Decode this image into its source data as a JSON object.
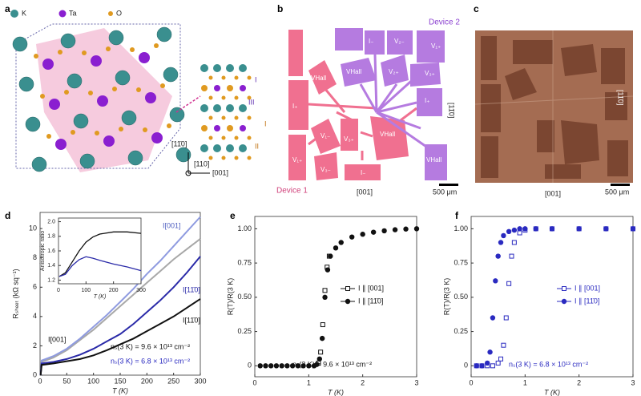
{
  "figure": {
    "a": {
      "letter": "a",
      "legend": [
        "K",
        "Ta",
        "O"
      ],
      "directions": [
        "[11̄0]",
        "[110]",
        "[001]"
      ],
      "sites": [
        "I",
        "III",
        "I",
        "II"
      ]
    },
    "b": {
      "letter": "b",
      "device2": "Device 2",
      "device1": "Device 1",
      "labels": [
        "I₋",
        "V₂₋",
        "V₁₊",
        "VHall",
        "V₂₊",
        "V₃₊",
        "I₊",
        "VHall",
        "I₊",
        "V₁₋",
        "V₃₊",
        "VHall",
        "V₁₊",
        "V₃₋",
        "I₋",
        "VHall"
      ],
      "xdir": "[001]",
      "ydir": "[11̄0]",
      "scale": "500 μm"
    },
    "c": {
      "letter": "c",
      "xdir": "[001]",
      "ydir": "[11̄0]",
      "scale": "500 μm"
    },
    "letters": [
      "d",
      "e",
      "f"
    ]
  },
  "chart_data": [
    {
      "type": "line",
      "xlabel": "T (K)",
      "ylabel": "Rₛₕₑₑₜ (kΩ sq⁻¹)",
      "x": [
        1,
        3,
        25,
        50,
        75,
        100,
        125,
        150,
        175,
        200,
        225,
        250,
        275,
        300
      ],
      "xlim": [
        0,
        300
      ],
      "xticks": [
        0,
        50,
        100,
        150,
        200,
        250,
        300
      ],
      "ylim": [
        0,
        11.1
      ],
      "yticks": [
        0,
        2,
        4,
        6,
        8,
        10
      ],
      "series": [
        {
          "color": "#a8a8a8",
          "values": [
            0,
            0.9,
            1.2,
            1.7,
            2.4,
            3.1,
            3.9,
            4.7,
            5.5,
            6.3,
            7.1,
            7.9,
            8.6,
            9.3
          ]
        },
        {
          "color": "#8f9be0",
          "values": [
            0,
            1.0,
            1.3,
            1.8,
            2.5,
            3.3,
            4.1,
            5.0,
            5.9,
            6.9,
            7.8,
            8.8,
            9.8,
            10.8
          ]
        },
        {
          "color": "#2a2aa8",
          "values": [
            0,
            0.8,
            0.9,
            1.1,
            1.4,
            1.8,
            2.3,
            2.8,
            3.5,
            4.3,
            5.1,
            6.0,
            7.0,
            8.1
          ]
        },
        {
          "color": "#111111",
          "values": [
            0,
            0.7,
            0.8,
            0.95,
            1.1,
            1.35,
            1.7,
            2.1,
            2.5,
            3.0,
            3.5,
            4.0,
            4.6,
            5.2
          ]
        }
      ],
      "annotations": [
        "I[001]",
        "I[11̄0]",
        "I[11̄0]",
        "I[001]",
        "nₛ(3 K) = 9.6 × 10¹³ cm⁻²",
        "nₛ(3 K) = 6.8 × 10¹³ cm⁻²"
      ]
    },
    {
      "type": "line",
      "xlabel": "T (K)",
      "ylabel": "Anisotropic ratio",
      "x": [
        3,
        25,
        50,
        75,
        100,
        125,
        150,
        200,
        250,
        300
      ],
      "xlim": [
        0,
        300
      ],
      "xticks": [
        0,
        100,
        200,
        300
      ],
      "ylim": [
        1.15,
        2.05
      ],
      "yticks": [
        1.2,
        1.4,
        1.6,
        1.8,
        {
          "value": 2,
          "label": "2.0"
        }
      ],
      "series": [
        {
          "color": "#111111",
          "values": [
            1.25,
            1.3,
            1.45,
            1.6,
            1.72,
            1.79,
            1.83,
            1.86,
            1.86,
            1.84
          ]
        },
        {
          "color": "#2a2aa8",
          "values": [
            1.25,
            1.28,
            1.4,
            1.48,
            1.52,
            1.5,
            1.47,
            1.42,
            1.38,
            1.33
          ]
        }
      ]
    },
    {
      "type": "scatter",
      "xlabel": "T (K)",
      "ylabel": "R(T)/R(3 K)",
      "legend": "center right",
      "xlim": [
        0,
        3
      ],
      "xticks": [
        0,
        1,
        2,
        3
      ],
      "ylim": [
        -0.08,
        1.09
      ],
      "yticks": [
        0,
        0.25,
        {
          "value": 0.5,
          "label": "0.50"
        },
        0.75,
        {
          "value": 1,
          "label": "1.00"
        }
      ],
      "series": [
        {
          "name": "I ∥ [001]",
          "color": "#111111",
          "marker": "square-open",
          "x": [
            1.18,
            1.22,
            1.26,
            1.3,
            1.34,
            1.38
          ],
          "values": [
            0.02,
            0.1,
            0.3,
            0.55,
            0.72,
            0.8
          ]
        },
        {
          "name": "I ∥ [11̄0]",
          "color": "#111111",
          "marker": "circle",
          "x": [
            0.1,
            0.2,
            0.3,
            0.4,
            0.5,
            0.6,
            0.7,
            0.8,
            0.9,
            1.0,
            1.1,
            1.15,
            1.2,
            1.25,
            1.3,
            1.35,
            1.4,
            1.5,
            1.6,
            1.8,
            2.0,
            2.2,
            2.4,
            2.6,
            2.8,
            3.0
          ],
          "values": [
            0,
            0,
            0,
            0,
            0,
            0,
            0,
            0,
            0,
            0,
            0,
            0.01,
            0.05,
            0.2,
            0.5,
            0.7,
            0.8,
            0.86,
            0.9,
            0.94,
            0.96,
            0.975,
            0.985,
            0.993,
            0.998,
            1.0
          ]
        }
      ],
      "annotations": [
        "nₛ(3 K) = 9.6 × 10¹³ cm⁻²"
      ]
    },
    {
      "type": "scatter",
      "xlabel": "T (K)",
      "ylabel": "R(T)/R(3 K)",
      "legend": "center right",
      "xlim": [
        0,
        3
      ],
      "xticks": [
        0,
        1,
        2,
        3
      ],
      "ylim": [
        -0.08,
        1.09
      ],
      "yticks": [
        0,
        0.25,
        {
          "value": 0.5,
          "label": "0.50"
        },
        0.75,
        {
          "value": 1,
          "label": "1.00"
        }
      ],
      "series": [
        {
          "name": "I ∥ [001]",
          "color": "#2a2ac0",
          "marker": "square-open",
          "x": [
            0.1,
            0.2,
            0.3,
            0.4,
            0.5,
            0.55,
            0.6,
            0.65,
            0.7,
            0.75,
            0.8,
            0.9,
            1.0,
            1.2,
            1.5,
            2.0,
            2.5,
            3.0
          ],
          "values": [
            0,
            0,
            0,
            0,
            0.02,
            0.05,
            0.15,
            0.35,
            0.6,
            0.8,
            0.9,
            0.97,
            0.99,
            1,
            1,
            1,
            1,
            1
          ]
        },
        {
          "name": "I ∥ [11̄0]",
          "color": "#2a2ac0",
          "marker": "circle",
          "x": [
            0.1,
            0.2,
            0.3,
            0.35,
            0.4,
            0.45,
            0.5,
            0.55,
            0.6,
            0.7,
            0.8,
            0.9,
            1.0,
            1.2,
            1.5,
            2.0,
            2.5,
            3.0
          ],
          "values": [
            0,
            0,
            0.02,
            0.1,
            0.35,
            0.62,
            0.8,
            0.9,
            0.95,
            0.98,
            0.99,
            1,
            1,
            1,
            1,
            1,
            1,
            1
          ]
        }
      ],
      "annotations": [
        "nₛ(3 K) = 6.8 × 10¹³ cm⁻²"
      ]
    }
  ]
}
